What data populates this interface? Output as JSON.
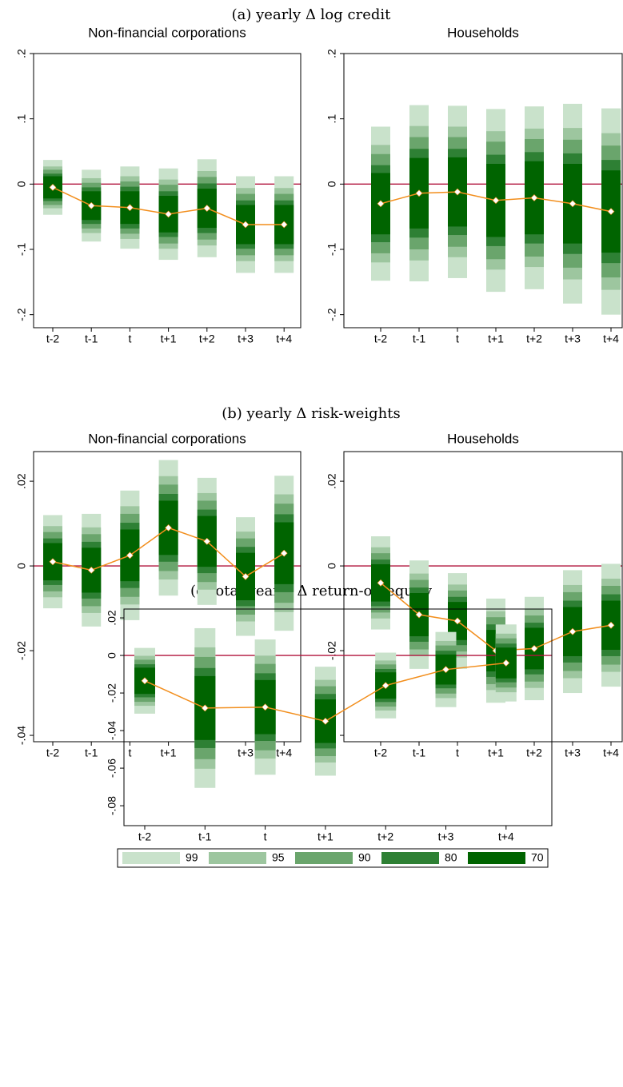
{
  "headings": [
    "(a) yearly Δ log credit",
    "(b) yearly Δ risk-weights",
    "(c)total yearly Δ return-on-equity"
  ],
  "legend": [
    {
      "name": "99",
      "color": "#c9e2cb"
    },
    {
      "name": "95",
      "color": "#9dc69f"
    },
    {
      "name": "90",
      "color": "#6aa56c"
    },
    {
      "name": "80",
      "color": "#2e8034"
    },
    {
      "name": "70",
      "color": "#006400"
    }
  ],
  "chart_data": [
    {
      "type": "ci",
      "title": "Non-financial corporations",
      "categories": [
        "t-2",
        "t-1",
        "t",
        "t+1",
        "t+2",
        "t+3",
        "t+4"
      ],
      "estimate": [
        -0.005,
        -0.033,
        -0.036,
        -0.046,
        -0.037,
        -0.062,
        -0.062
      ],
      "bands": [
        {
          "half": [
            0.042,
            0.055,
            0.063,
            0.07,
            0.075,
            0.074,
            0.074
          ]
        },
        {
          "half": [
            0.032,
            0.042,
            0.048,
            0.053,
            0.057,
            0.056,
            0.056
          ]
        },
        {
          "half": [
            0.027,
            0.035,
            0.04,
            0.045,
            0.048,
            0.047,
            0.047
          ]
        },
        {
          "half": [
            0.021,
            0.028,
            0.032,
            0.035,
            0.038,
            0.037,
            0.037
          ]
        },
        {
          "half": [
            0.017,
            0.022,
            0.025,
            0.028,
            0.03,
            0.03,
            0.03
          ]
        }
      ],
      "ylim": [
        -0.22,
        0.2
      ],
      "yticks": [
        {
          "value": -0.2,
          "label": "-.2"
        },
        {
          "value": -0.1,
          "label": "-.1"
        },
        0,
        {
          "value": 0.1,
          "label": ".1"
        },
        {
          "value": 0.2,
          "label": ".2"
        }
      ],
      "hline": 0,
      "line_color": "#f28e1c",
      "hline_color": "#b0143c"
    },
    {
      "type": "ci",
      "title": "Households",
      "categories": [
        "t-2",
        "t-1",
        "t",
        "t+1",
        "t+2",
        "t+3",
        "t+4"
      ],
      "estimate": [
        -0.03,
        -0.014,
        -0.012,
        -0.025,
        -0.021,
        -0.03,
        -0.042
      ],
      "bands": [
        {
          "half": [
            0.118,
            0.135,
            0.132,
            0.14,
            0.14,
            0.153,
            0.158
          ]
        },
        {
          "half": [
            0.09,
            0.103,
            0.1,
            0.106,
            0.106,
            0.116,
            0.12
          ]
        },
        {
          "half": [
            0.076,
            0.086,
            0.084,
            0.09,
            0.09,
            0.098,
            0.101
          ]
        },
        {
          "half": [
            0.059,
            0.068,
            0.066,
            0.07,
            0.07,
            0.077,
            0.079
          ]
        },
        {
          "half": [
            0.047,
            0.054,
            0.053,
            0.056,
            0.056,
            0.061,
            0.063
          ]
        }
      ],
      "ylim": [
        -0.22,
        0.2
      ],
      "yticks": [
        {
          "value": -0.2,
          "label": "-.2"
        },
        {
          "value": -0.1,
          "label": "-.1"
        },
        0,
        {
          "value": 0.1,
          "label": ".1"
        },
        {
          "value": 0.2,
          "label": ".2"
        }
      ],
      "hline": 0,
      "line_color": "#f28e1c",
      "hline_color": "#b0143c"
    },
    {
      "type": "ci",
      "title": "Non-financial corporations",
      "categories": [
        "t-2",
        "t-1",
        "t",
        "t+1",
        "t+2",
        "t+3",
        "t+4"
      ],
      "estimate": [
        0.001,
        -0.001,
        0.0025,
        0.009,
        0.0058,
        -0.0025,
        0.003
      ],
      "bands": [
        {
          "half": [
            0.011,
            0.0133,
            0.0153,
            0.016,
            0.015,
            0.014,
            0.0183
          ]
        },
        {
          "half": [
            0.0084,
            0.0101,
            0.0116,
            0.0122,
            0.0114,
            0.0106,
            0.0139
          ]
        },
        {
          "half": [
            0.007,
            0.0085,
            0.0098,
            0.0102,
            0.0096,
            0.009,
            0.0117
          ]
        },
        {
          "half": [
            0.0055,
            0.0067,
            0.0077,
            0.008,
            0.0075,
            0.007,
            0.0092
          ]
        },
        {
          "half": [
            0.0044,
            0.0053,
            0.0061,
            0.0064,
            0.006,
            0.0056,
            0.0073
          ]
        }
      ],
      "ylim": [
        -0.0415,
        0.027
      ],
      "yticks": [
        {
          "value": -0.04,
          "label": "-.04"
        },
        {
          "value": -0.02,
          "label": "-.02"
        },
        0,
        {
          "value": 0.02,
          "label": ".02"
        }
      ],
      "hline": 0,
      "line_color": "#f28e1c",
      "hline_color": "#b0143c"
    },
    {
      "type": "ci",
      "title": "Households",
      "categories": [
        "t-2",
        "t-1",
        "t",
        "t+1",
        "t+2",
        "t+3",
        "t+4"
      ],
      "estimate": [
        -0.004,
        -0.0115,
        -0.013,
        -0.02,
        -0.0195,
        -0.0155,
        -0.014
      ],
      "bands": [
        {
          "half": [
            0.011,
            0.0128,
            0.0113,
            0.0123,
            0.0122,
            0.0145,
            0.0145
          ]
        },
        {
          "half": [
            0.0084,
            0.0097,
            0.0086,
            0.0093,
            0.0093,
            0.011,
            0.011
          ]
        },
        {
          "half": [
            0.007,
            0.0082,
            0.0072,
            0.0079,
            0.0078,
            0.0093,
            0.0093
          ]
        },
        {
          "half": [
            0.0055,
            0.0064,
            0.0057,
            0.0062,
            0.0061,
            0.0073,
            0.0073
          ]
        },
        {
          "half": [
            0.0044,
            0.0051,
            0.0045,
            0.0049,
            0.0049,
            0.0058,
            0.0058
          ]
        }
      ],
      "ylim": [
        -0.0415,
        0.027
      ],
      "yticks": [
        {
          "value": -0.04,
          "label": "-.04"
        },
        {
          "value": -0.02,
          "label": "-.02"
        },
        0,
        {
          "value": 0.02,
          "label": ".02"
        }
      ],
      "hline": 0,
      "line_color": "#f28e1c",
      "hline_color": "#b0143c"
    },
    {
      "type": "ci",
      "categories": [
        "t-2",
        "t-1",
        "t",
        "t+1",
        "t+2",
        "t+3",
        "t+4"
      ],
      "estimate": [
        -0.0135,
        -0.028,
        -0.0275,
        -0.035,
        -0.016,
        -0.0075,
        -0.004
      ],
      "bands": [
        {
          "half": [
            0.0175,
            0.0425,
            0.036,
            0.029,
            0.0175,
            0.02,
            0.0205
          ]
        },
        {
          "half": [
            0.0133,
            0.0323,
            0.0274,
            0.022,
            0.0133,
            0.0152,
            0.0156
          ]
        },
        {
          "half": [
            0.0112,
            0.0272,
            0.023,
            0.0186,
            0.0112,
            0.0128,
            0.0131
          ]
        },
        {
          "half": [
            0.0088,
            0.0213,
            0.018,
            0.0145,
            0.0088,
            0.01,
            0.0103
          ]
        },
        {
          "half": [
            0.007,
            0.017,
            0.0144,
            0.0116,
            0.007,
            0.008,
            0.0082
          ]
        }
      ],
      "ylim": [
        -0.0906,
        0.0247
      ],
      "yticks": [
        {
          "value": -0.08,
          "label": "-.08"
        },
        {
          "value": -0.06,
          "label": "-.06"
        },
        {
          "value": -0.04,
          "label": "-.04"
        },
        {
          "value": -0.02,
          "label": "-.02"
        },
        0,
        {
          "value": 0.02,
          "label": ".02"
        }
      ],
      "hline": 0,
      "line_color": "#f28e1c",
      "hline_color": "#b0143c"
    }
  ]
}
